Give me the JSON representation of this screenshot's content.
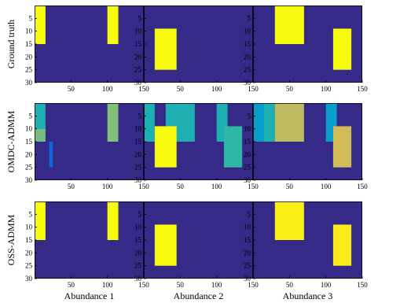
{
  "figure": {
    "background": "#ffffff",
    "panel_background": "#352a87",
    "axis_color": "#000000",
    "row_labels": [
      "Ground truth",
      "OMDC-ADMM",
      "OSS-ADMM"
    ],
    "column_labels": [
      "Abundance 1",
      "Abundance 2",
      "Abundance 3"
    ]
  },
  "chart_data": {
    "type": "heatmap",
    "colormap": "parula",
    "colormap_stops": [
      "#352a87",
      "#0f5cdd",
      "#1481d6",
      "#06a4ca",
      "#2eb7a4",
      "#87bf77",
      "#d1bb59",
      "#fec832",
      "#f9fb0e"
    ],
    "value_range": [
      0,
      1
    ],
    "image_size": {
      "columns": 150,
      "rows": 30
    },
    "x": {
      "ticks": [
        50,
        100,
        150
      ],
      "lim": [
        0,
        150
      ]
    },
    "y": {
      "ticks": [
        5,
        10,
        15,
        20,
        25,
        30
      ],
      "lim": [
        0,
        30
      ],
      "reversed": true
    },
    "panels": [
      {
        "row": "Ground truth",
        "column": "Abundance 1",
        "blocks": [
          {
            "x": [
              1,
              15
            ],
            "y": [
              1,
              15
            ],
            "value": 1.0
          },
          {
            "x": [
              101,
              115
            ],
            "y": [
              1,
              15
            ],
            "value": 1.0
          }
        ]
      },
      {
        "row": "Ground truth",
        "column": "Abundance 2",
        "blocks": [
          {
            "x": [
              16,
              45
            ],
            "y": [
              10,
              25
            ],
            "value": 1.0
          }
        ]
      },
      {
        "row": "Ground truth",
        "column": "Abundance 3",
        "blocks": [
          {
            "x": [
              31,
              70
            ],
            "y": [
              1,
              15
            ],
            "value": 1.0
          },
          {
            "x": [
              111,
              135
            ],
            "y": [
              10,
              25
            ],
            "value": 1.0
          }
        ]
      },
      {
        "row": "OMDC-ADMM",
        "column": "Abundance 1",
        "blocks": [
          {
            "x": [
              1,
              15
            ],
            "y": [
              1,
              10
            ],
            "value": 0.45
          },
          {
            "x": [
              1,
              15
            ],
            "y": [
              11,
              15
            ],
            "value": 0.6
          },
          {
            "x": [
              21,
              25
            ],
            "y": [
              16,
              25
            ],
            "value": 0.15
          },
          {
            "x": [
              101,
              115
            ],
            "y": [
              1,
              15
            ],
            "value": 0.62
          }
        ]
      },
      {
        "row": "OMDC-ADMM",
        "column": "Abundance 2",
        "blocks": [
          {
            "x": [
              1,
              15
            ],
            "y": [
              1,
              15
            ],
            "value": 0.45
          },
          {
            "x": [
              31,
              70
            ],
            "y": [
              1,
              15
            ],
            "value": 0.45
          },
          {
            "x": [
              101,
              115
            ],
            "y": [
              1,
              15
            ],
            "value": 0.45
          },
          {
            "x": [
              111,
              135
            ],
            "y": [
              10,
              25
            ],
            "value": 0.5
          },
          {
            "x": [
              16,
              45
            ],
            "y": [
              10,
              25
            ],
            "value": 1.0
          }
        ]
      },
      {
        "row": "OMDC-ADMM",
        "column": "Abundance 3",
        "blocks": [
          {
            "x": [
              1,
              15
            ],
            "y": [
              1,
              15
            ],
            "value": 0.35
          },
          {
            "x": [
              101,
              115
            ],
            "y": [
              1,
              15
            ],
            "value": 0.35
          },
          {
            "x": [
              16,
              30
            ],
            "y": [
              1,
              15
            ],
            "value": 0.45
          },
          {
            "x": [
              31,
              70
            ],
            "y": [
              1,
              15
            ],
            "value": 0.72
          },
          {
            "x": [
              111,
              135
            ],
            "y": [
              10,
              25
            ],
            "value": 0.75
          }
        ]
      },
      {
        "row": "OSS-ADMM",
        "column": "Abundance 1",
        "blocks": [
          {
            "x": [
              1,
              15
            ],
            "y": [
              1,
              15
            ],
            "value": 1.0
          },
          {
            "x": [
              101,
              115
            ],
            "y": [
              1,
              15
            ],
            "value": 1.0
          }
        ]
      },
      {
        "row": "OSS-ADMM",
        "column": "Abundance 2",
        "blocks": [
          {
            "x": [
              16,
              45
            ],
            "y": [
              10,
              25
            ],
            "value": 1.0
          }
        ]
      },
      {
        "row": "OSS-ADMM",
        "column": "Abundance 3",
        "blocks": [
          {
            "x": [
              31,
              70
            ],
            "y": [
              1,
              15
            ],
            "value": 0.97
          },
          {
            "x": [
              111,
              135
            ],
            "y": [
              10,
              25
            ],
            "value": 0.96
          }
        ]
      }
    ]
  }
}
